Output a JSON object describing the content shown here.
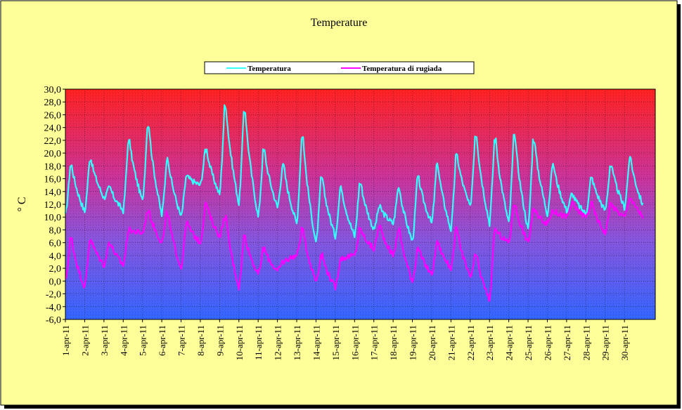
{
  "chart_data": {
    "type": "line",
    "title": "Temperature",
    "ylabel": "° C",
    "xlabel": "",
    "ylim": [
      -6,
      30
    ],
    "yticks": [
      "30,0",
      "28,0",
      "26,0",
      "24,0",
      "22,0",
      "20,0",
      "18,0",
      "16,0",
      "14,0",
      "12,0",
      "10,0",
      "8,0",
      "6,0",
      "4,0",
      "2,0",
      "0,0",
      "-2,0",
      "-4,0",
      "-6,0"
    ],
    "categories": [
      "1-apr-11",
      "2-apr-11",
      "3-apr-11",
      "4-apr-11",
      "5-apr-11",
      "6-apr-11",
      "7-apr-11",
      "8-apr-11",
      "9-apr-11",
      "10-apr-11",
      "11-apr-11",
      "12-apr-11",
      "13-apr-11",
      "14-apr-11",
      "15-apr-11",
      "16-apr-11",
      "17-apr-11",
      "18-apr-11",
      "19-apr-11",
      "20-apr-11",
      "21-apr-11",
      "22-apr-11",
      "23-apr-11",
      "24-apr-11",
      "25-apr-11",
      "26-apr-11",
      "27-apr-11",
      "28-apr-11",
      "29-apr-11",
      "30-apr-11"
    ],
    "grid": true,
    "legend_position": "top",
    "background": "gradient red (top) to blue (bottom)",
    "series": [
      {
        "name": "Temperatura",
        "color": "#33ffff",
        "min": [
          10.2,
          10.8,
          13.0,
          11.0,
          12.5,
          10.3,
          10.0,
          15.0,
          13.5,
          12.0,
          10.0,
          11.5,
          9.0,
          5.8,
          7.0,
          7.0,
          8.0,
          9.0,
          6.2,
          9.0,
          8.0,
          11.5,
          9.0,
          9.0,
          8.0,
          10.5,
          11.0,
          10.5,
          11.0,
          11.5
        ],
        "max": [
          18.0,
          19.0,
          14.5,
          21.8,
          24.3,
          19.0,
          16.3,
          20.5,
          27.2,
          26.5,
          20.3,
          18.0,
          22.5,
          16.0,
          14.5,
          15.2,
          11.5,
          14.5,
          16.0,
          18.0,
          19.5,
          22.8,
          22.0,
          22.5,
          22.0,
          18.0,
          13.5,
          16.0,
          18.0,
          19.0
        ]
      },
      {
        "name": "Temperatura di rugiada",
        "color": "#ff00ff",
        "min": [
          0.0,
          -1.0,
          2.5,
          2.5,
          7.5,
          6.0,
          2.0,
          6.0,
          7.0,
          -1.0,
          1.0,
          1.5,
          4.0,
          0.0,
          -1.0,
          4.0,
          5.0,
          4.0,
          0.0,
          1.0,
          2.0,
          0.5,
          -3.0,
          6.0,
          6.0,
          9.0,
          10.0,
          10.0,
          7.5,
          10.0
        ],
        "max": [
          6.5,
          6.5,
          6.0,
          8.0,
          11.0,
          10.5,
          9.0,
          12.0,
          10.0,
          7.0,
          5.0,
          3.0,
          8.0,
          4.0,
          3.5,
          8.0,
          8.5,
          8.0,
          5.0,
          6.0,
          8.0,
          4.0,
          8.0,
          12.0,
          11.0,
          11.0,
          12.0,
          12.0,
          12.0,
          13.0
        ]
      }
    ]
  }
}
